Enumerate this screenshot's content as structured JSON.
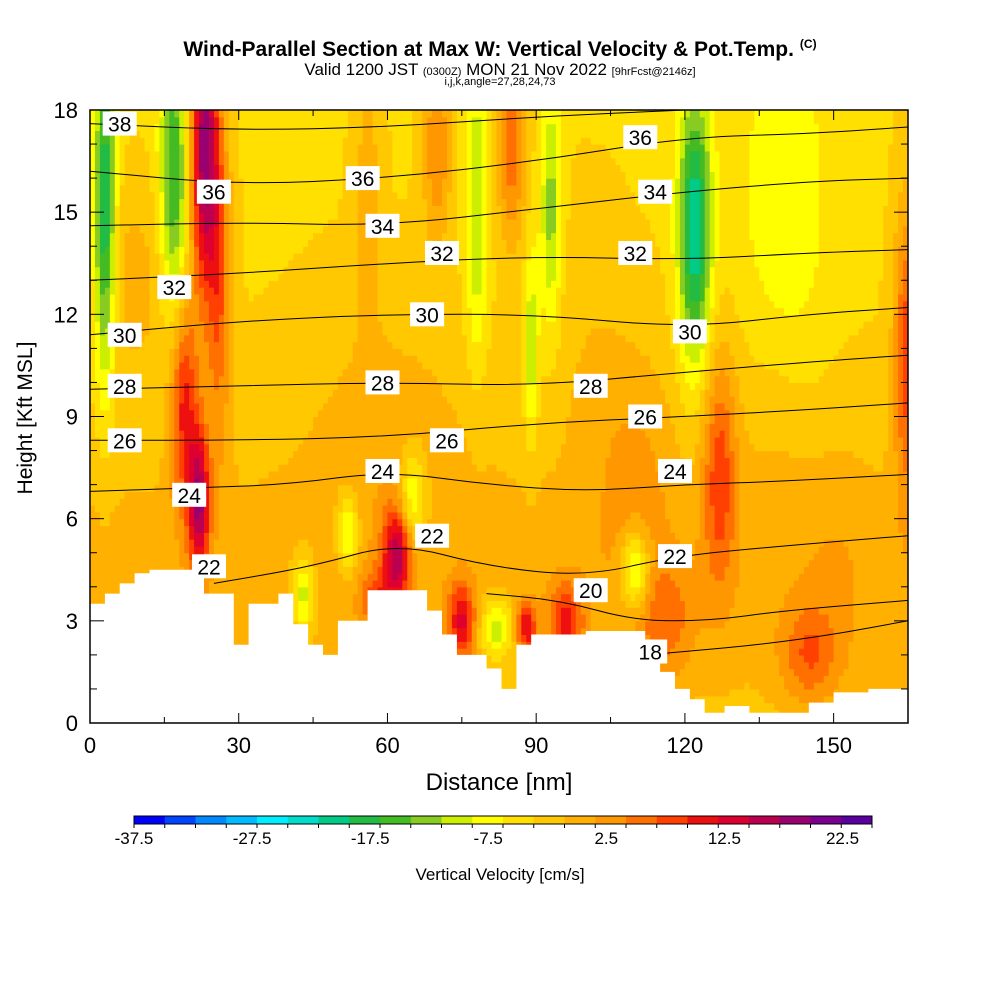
{
  "chart_data": {
    "type": "heatmap",
    "title": "Wind-Parallel Section at Max W: Vertical Velocity & Pot.Temp.",
    "title_mark": "(C)",
    "subtitle": {
      "main_a": "Valid 1200 JST",
      "small_a": "(0300Z)",
      "main_b": "MON 21 Nov 2022",
      "small_b": "[9hrFcst@2146z]"
    },
    "subtitle2": "i,j,k,angle=27,28,24,73",
    "xlabel": "Distance [nm]",
    "ylabel": "Height [Kft MSL]",
    "xlim": [
      0,
      165
    ],
    "ylim": [
      0,
      18
    ],
    "x_ticks": [
      0,
      30,
      60,
      90,
      120,
      150
    ],
    "y_ticks": [
      0,
      3,
      6,
      9,
      12,
      15,
      18
    ],
    "colorbar": {
      "label": "Vertical Velocity [cm/s]",
      "tick_labels": [
        "-37.5",
        "-27.5",
        "-17.5",
        "-7.5",
        "2.5",
        "12.5",
        "22.5"
      ],
      "min": -37.5,
      "max": 25,
      "colors": [
        "#0000ff",
        "#0044ff",
        "#0088ff",
        "#00bbff",
        "#00eeff",
        "#00ddcc",
        "#00cc88",
        "#22bb44",
        "#44bb22",
        "#88cc22",
        "#ccee00",
        "#ffff00",
        "#ffe000",
        "#ffc800",
        "#ffb000",
        "#ff9800",
        "#ff7000",
        "#ff4000",
        "#ee1010",
        "#dd0030",
        "#bb0050",
        "#990070",
        "#7a0090",
        "#5a00a0"
      ]
    },
    "theta_contours": {
      "units": "K",
      "contours": [
        {
          "level": 18,
          "pts": [
            [
              112,
              2
            ],
            [
              120,
              2.1
            ],
            [
              135,
              2.3
            ],
            [
              150,
              2.6
            ],
            [
              165,
              3.0
            ]
          ],
          "labels": [
            [
              113,
              2.1
            ]
          ]
        },
        {
          "level": 20,
          "pts": [
            [
              80,
              3.8
            ],
            [
              95,
              3.6
            ],
            [
              110,
              3.0
            ],
            [
              125,
              3.0
            ],
            [
              140,
              3.3
            ],
            [
              165,
              3.6
            ]
          ],
          "labels": [
            [
              101,
              3.9
            ]
          ]
        },
        {
          "level": 22,
          "pts": [
            [
              25,
              4.1
            ],
            [
              45,
              4.6
            ],
            [
              62,
              5.3
            ],
            [
              80,
              4.6
            ],
            [
              100,
              4.3
            ],
            [
              118,
              4.9
            ],
            [
              140,
              5.2
            ],
            [
              165,
              5.5
            ]
          ],
          "labels": [
            [
              24,
              4.6
            ],
            [
              69,
              5.5
            ],
            [
              118,
              4.9
            ]
          ]
        },
        {
          "level": 24,
          "pts": [
            [
              0,
              6.8
            ],
            [
              20,
              6.9
            ],
            [
              40,
              7.0
            ],
            [
              60,
              7.4
            ],
            [
              80,
              7.0
            ],
            [
              100,
              6.8
            ],
            [
              120,
              7.0
            ],
            [
              140,
              7.1
            ],
            [
              165,
              7.3
            ]
          ],
          "labels": [
            [
              20,
              6.7
            ],
            [
              59,
              7.4
            ],
            [
              118,
              7.4
            ]
          ]
        },
        {
          "level": 26,
          "pts": [
            [
              0,
              8.3
            ],
            [
              30,
              8.3
            ],
            [
              60,
              8.4
            ],
            [
              90,
              8.8
            ],
            [
              120,
              9.0
            ],
            [
              145,
              9.2
            ],
            [
              165,
              9.4
            ]
          ],
          "labels": [
            [
              7,
              8.3
            ],
            [
              72,
              8.3
            ],
            [
              112,
              9.0
            ]
          ]
        },
        {
          "level": 28,
          "pts": [
            [
              0,
              9.8
            ],
            [
              30,
              9.9
            ],
            [
              60,
              10.0
            ],
            [
              90,
              9.9
            ],
            [
              120,
              10.3
            ],
            [
              145,
              10.6
            ],
            [
              165,
              10.8
            ]
          ],
          "labels": [
            [
              7,
              9.9
            ],
            [
              59,
              10.0
            ],
            [
              101,
              9.9
            ]
          ]
        },
        {
          "level": 30,
          "pts": [
            [
              0,
              11.4
            ],
            [
              30,
              11.8
            ],
            [
              60,
              12.0
            ],
            [
              90,
              12.0
            ],
            [
              120,
              11.6
            ],
            [
              145,
              12.0
            ],
            [
              165,
              12.2
            ]
          ],
          "labels": [
            [
              7,
              11.4
            ],
            [
              68,
              12.0
            ],
            [
              121,
              11.5
            ]
          ]
        },
        {
          "level": 32,
          "pts": [
            [
              0,
              13.0
            ],
            [
              30,
              13.2
            ],
            [
              60,
              13.5
            ],
            [
              90,
              13.7
            ],
            [
              120,
              13.6
            ],
            [
              145,
              13.8
            ],
            [
              165,
              13.9
            ]
          ],
          "labels": [
            [
              17,
              12.8
            ],
            [
              71,
              13.8
            ],
            [
              110,
              13.8
            ]
          ]
        },
        {
          "level": 34,
          "pts": [
            [
              0,
              14.6
            ],
            [
              30,
              14.7
            ],
            [
              60,
              14.6
            ],
            [
              90,
              15.1
            ],
            [
              120,
              15.6
            ],
            [
              145,
              15.9
            ],
            [
              165,
              16.0
            ]
          ],
          "labels": [
            [
              59,
              14.6
            ],
            [
              114,
              15.6
            ]
          ]
        },
        {
          "level": 36,
          "pts": [
            [
              0,
              16.2
            ],
            [
              30,
              15.8
            ],
            [
              60,
              16.0
            ],
            [
              90,
              16.5
            ],
            [
              120,
              17.2
            ],
            [
              145,
              17.3
            ],
            [
              165,
              17.5
            ]
          ],
          "labels": [
            [
              25,
              15.6
            ],
            [
              55,
              16.0
            ],
            [
              111,
              17.2
            ]
          ]
        },
        {
          "level": 38,
          "pts": [
            [
              0,
              17.6
            ],
            [
              30,
              17.4
            ],
            [
              60,
              17.5
            ],
            [
              90,
              17.8
            ],
            [
              120,
              18.0
            ]
          ],
          "labels": [
            [
              6,
              17.6
            ]
          ]
        }
      ]
    },
    "terrain_kft": [
      [
        0,
        3.5
      ],
      [
        3,
        3.5
      ],
      [
        3,
        3.8
      ],
      [
        6,
        3.8
      ],
      [
        6,
        4.1
      ],
      [
        9,
        4.1
      ],
      [
        9,
        4.4
      ],
      [
        12,
        4.4
      ],
      [
        12,
        4.5
      ],
      [
        23,
        4.5
      ],
      [
        23,
        3.8
      ],
      [
        29,
        3.8
      ],
      [
        29,
        2.3
      ],
      [
        32,
        2.3
      ],
      [
        32,
        3.5
      ],
      [
        38,
        3.5
      ],
      [
        38,
        3.8
      ],
      [
        41,
        3.8
      ],
      [
        41,
        2.9
      ],
      [
        44,
        2.9
      ],
      [
        44,
        2.3
      ],
      [
        47,
        2.3
      ],
      [
        47,
        2.0
      ],
      [
        50,
        2.0
      ],
      [
        50,
        3.0
      ],
      [
        56,
        3.0
      ],
      [
        56,
        3.9
      ],
      [
        68,
        3.9
      ],
      [
        68,
        3.3
      ],
      [
        71,
        3.3
      ],
      [
        71,
        2.6
      ],
      [
        74,
        2.6
      ],
      [
        74,
        2.0
      ],
      [
        80,
        2.0
      ],
      [
        80,
        1.6
      ],
      [
        83,
        1.6
      ],
      [
        83,
        1.0
      ],
      [
        86,
        1.0
      ],
      [
        86,
        2.3
      ],
      [
        89,
        2.3
      ],
      [
        89,
        2.6
      ],
      [
        100,
        2.6
      ],
      [
        100,
        2.7
      ],
      [
        112,
        2.7
      ],
      [
        112,
        1.8
      ],
      [
        115,
        1.8
      ],
      [
        115,
        1.5
      ],
      [
        118,
        1.5
      ],
      [
        118,
        1.0
      ],
      [
        121,
        1.0
      ],
      [
        121,
        0.7
      ],
      [
        124,
        0.7
      ],
      [
        124,
        0.3
      ],
      [
        128,
        0.3
      ],
      [
        128,
        0.5
      ],
      [
        133,
        0.5
      ],
      [
        133,
        0.3
      ],
      [
        145,
        0.3
      ],
      [
        145,
        0.6
      ],
      [
        150,
        0.6
      ],
      [
        150,
        0.9
      ],
      [
        157,
        0.9
      ],
      [
        157,
        1.0
      ],
      [
        165,
        1.0
      ]
    ],
    "w_features": [
      {
        "x": 3,
        "y": 15,
        "sx": 1.5,
        "sy": 3.5,
        "w": -16
      },
      {
        "x": 17,
        "y": 16,
        "sx": 2.0,
        "sy": 3.0,
        "w": -13
      },
      {
        "x": 23,
        "y": 17,
        "sx": 2.0,
        "sy": 3.0,
        "w": 22
      },
      {
        "x": 26,
        "y": 13,
        "sx": 1.8,
        "sy": 3.5,
        "w": 10
      },
      {
        "x": 19,
        "y": 9.5,
        "sx": 2.0,
        "sy": 2.2,
        "w": 13
      },
      {
        "x": 22,
        "y": 6.5,
        "sx": 1.5,
        "sy": 1.5,
        "w": 18
      },
      {
        "x": 9,
        "y": 13,
        "sx": 5,
        "sy": 2,
        "w": 4
      },
      {
        "x": 62,
        "y": 5.0,
        "sx": 2.0,
        "sy": 1.0,
        "w": 16
      },
      {
        "x": 65,
        "y": 6.5,
        "sx": 2.0,
        "sy": 1.0,
        "w": -10
      },
      {
        "x": 52,
        "y": 5.6,
        "sx": 1.5,
        "sy": 0.8,
        "w": -10
      },
      {
        "x": 43,
        "y": 3.8,
        "sx": 1.5,
        "sy": 0.8,
        "w": -10
      },
      {
        "x": 58,
        "y": 3.6,
        "sx": 2.5,
        "sy": 0.7,
        "w": 8
      },
      {
        "x": 75,
        "y": 3.0,
        "sx": 2.0,
        "sy": 0.8,
        "w": 13
      },
      {
        "x": 82,
        "y": 2.8,
        "sx": 2.5,
        "sy": 0.6,
        "w": -10
      },
      {
        "x": 88,
        "y": 2.8,
        "sx": 1.5,
        "sy": 0.5,
        "w": 13
      },
      {
        "x": 96,
        "y": 3.0,
        "sx": 2.5,
        "sy": 0.8,
        "w": 11
      },
      {
        "x": 110,
        "y": 4.5,
        "sx": 2.0,
        "sy": 0.8,
        "w": -12
      },
      {
        "x": 116,
        "y": 3.0,
        "sx": 4.0,
        "sy": 1.2,
        "w": 6
      },
      {
        "x": 122,
        "y": 14.5,
        "sx": 2.3,
        "sy": 2.8,
        "w": -18
      },
      {
        "x": 127,
        "y": 7.5,
        "sx": 2.5,
        "sy": 2.5,
        "w": 10
      },
      {
        "x": 110,
        "y": 7.5,
        "sx": 6.0,
        "sy": 3.0,
        "w": 4
      },
      {
        "x": 85,
        "y": 17,
        "sx": 2.0,
        "sy": 2.0,
        "w": 10
      },
      {
        "x": 93,
        "y": 15,
        "sx": 1.5,
        "sy": 2.5,
        "w": -9
      },
      {
        "x": 78,
        "y": 15,
        "sx": 1.5,
        "sy": 3.0,
        "w": -8
      },
      {
        "x": 70,
        "y": 17,
        "sx": 2.0,
        "sy": 2.0,
        "w": 8
      },
      {
        "x": 56,
        "y": 16,
        "sx": 2.0,
        "sy": 3.0,
        "w": 4
      },
      {
        "x": 89,
        "y": 11,
        "sx": 1.0,
        "sy": 2.0,
        "w": -8
      },
      {
        "x": 165,
        "y": 11,
        "sx": 2.0,
        "sy": 3.0,
        "w": 12
      },
      {
        "x": 140,
        "y": 15,
        "sx": 6.0,
        "sy": 4.0,
        "w": -5
      },
      {
        "x": 150,
        "y": 4.5,
        "sx": 6.0,
        "sy": 3.0,
        "w": 2
      },
      {
        "x": 138,
        "y": 9.5,
        "sx": 5.0,
        "sy": 3.0,
        "w": 2
      },
      {
        "x": 60,
        "y": 9.0,
        "sx": 12.0,
        "sy": 3.0,
        "w": 3
      },
      {
        "x": 100,
        "y": 11.5,
        "sx": 6.0,
        "sy": 3.0,
        "w": 2
      },
      {
        "x": 145,
        "y": 2.0,
        "sx": 4.0,
        "sy": 1.0,
        "w": 7
      }
    ]
  }
}
